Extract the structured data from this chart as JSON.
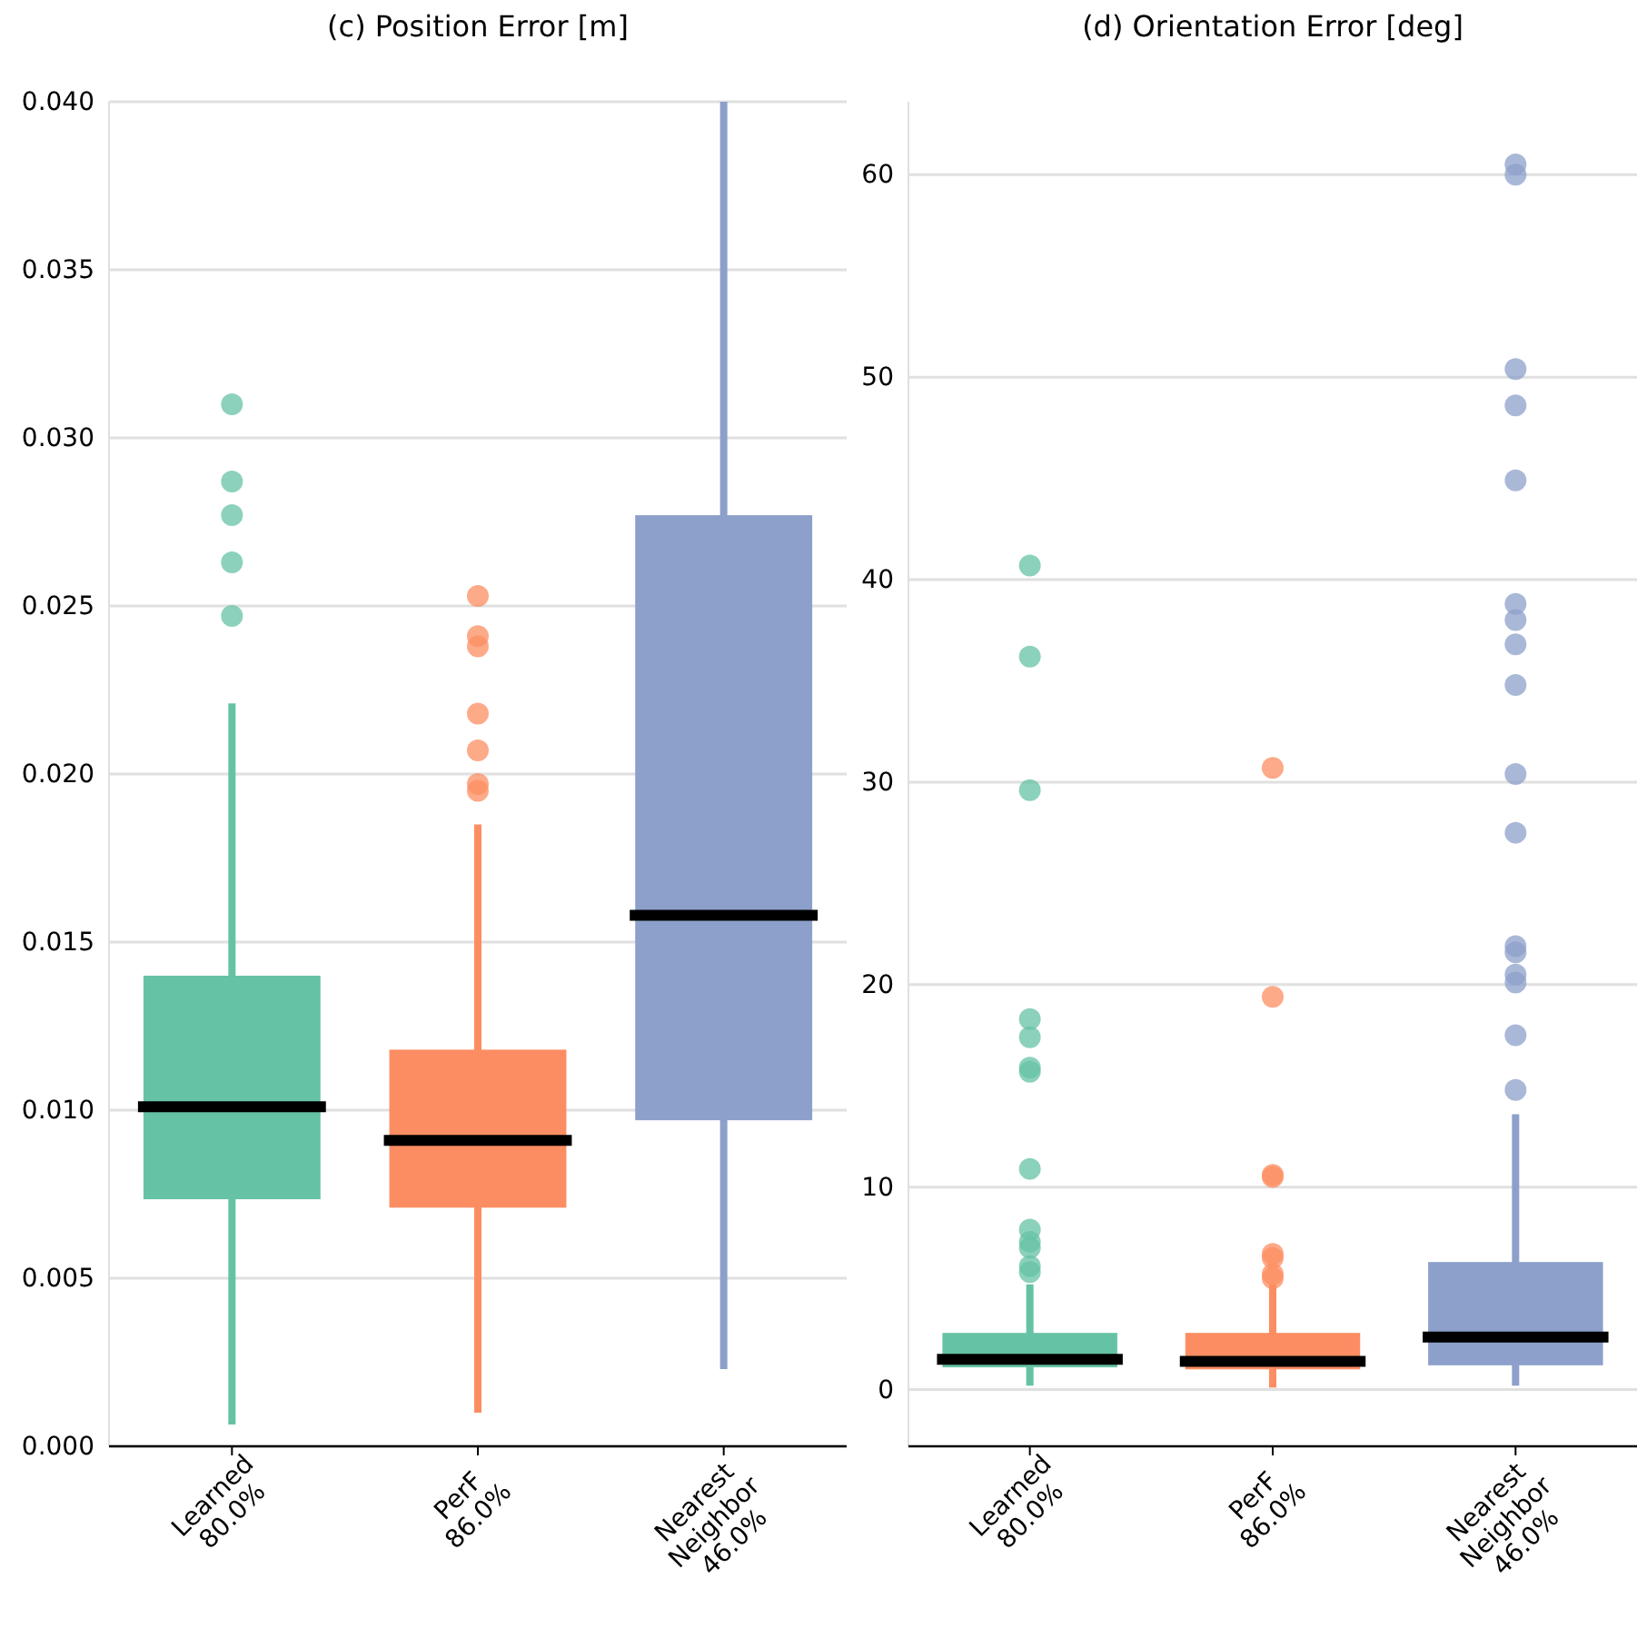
{
  "chart_data": [
    {
      "type": "box",
      "title": "(c) Position Error [m]",
      "categories": [
        "Learned\n80.0%",
        "PerF\n86.0%",
        "Nearest\nNeighbor\n46.0%"
      ],
      "colors": [
        "#66c2a5",
        "#fc8d62",
        "#8da0cb"
      ],
      "ylim": [
        0,
        0.04
      ],
      "yticks": [
        {
          "value": 0,
          "label": "0.000"
        },
        {
          "value": 0.005,
          "label": "0.005"
        },
        {
          "value": 0.01,
          "label": "0.010"
        },
        {
          "value": 0.015,
          "label": "0.015"
        },
        {
          "value": 0.02,
          "label": "0.020"
        },
        {
          "value": 0.025,
          "label": "0.025"
        },
        {
          "value": 0.03,
          "label": "0.030"
        },
        {
          "value": 0.035,
          "label": "0.035"
        },
        {
          "value": 0.04,
          "label": "0.040"
        }
      ],
      "grid": "y",
      "boxes": [
        {
          "low": 0.00065,
          "q1": 0.00735,
          "median": 0.0101,
          "q3": 0.014,
          "high": 0.0221,
          "outliers": [
            0.031,
            0.0287,
            0.0277,
            0.0263,
            0.0247
          ]
        },
        {
          "low": 0.001,
          "q1": 0.0071,
          "median": 0.0091,
          "q3": 0.0118,
          "high": 0.0185,
          "outliers": [
            0.0253,
            0.0241,
            0.0238,
            0.0218,
            0.0207,
            0.0197,
            0.0195
          ]
        },
        {
          "low": 0.0023,
          "q1": 0.0097,
          "median": 0.0158,
          "q3": 0.0277,
          "high": 0.04
        }
      ]
    },
    {
      "type": "box",
      "title": "(d) Orientation Error [deg]",
      "categories": [
        "Learned\n80.0%",
        "PerF\n86.0%",
        "Nearest\nNeighbor\n46.0%"
      ],
      "colors": [
        "#66c2a5",
        "#fc8d62",
        "#8da0cb"
      ],
      "ylim": [
        -2.8,
        63.6
      ],
      "yticks": [
        0,
        10,
        20,
        30,
        40,
        50,
        60
      ],
      "grid": "y",
      "boxes": [
        {
          "low": 0.2,
          "q1": 1.1,
          "median": 1.5,
          "q3": 2.8,
          "high": 5.2,
          "outliers": [
            40.7,
            36.2,
            29.6,
            18.3,
            17.4,
            15.9,
            15.7,
            10.9,
            7.9,
            7.3,
            7.0,
            6.1,
            5.8
          ]
        },
        {
          "low": 0.1,
          "q1": 1.0,
          "median": 1.4,
          "q3": 2.8,
          "high": 5.2,
          "outliers": [
            30.7,
            19.4,
            10.6,
            10.5,
            6.7,
            6.5,
            5.7,
            5.5
          ]
        },
        {
          "low": 0.2,
          "q1": 1.2,
          "median": 2.6,
          "q3": 6.3,
          "high": 13.6,
          "outliers": [
            60.5,
            60.0,
            50.4,
            48.6,
            44.9,
            38.8,
            38.0,
            36.8,
            34.8,
            30.4,
            27.5,
            21.9,
            21.6,
            20.5,
            20.1,
            17.5,
            14.8
          ]
        }
      ]
    }
  ]
}
